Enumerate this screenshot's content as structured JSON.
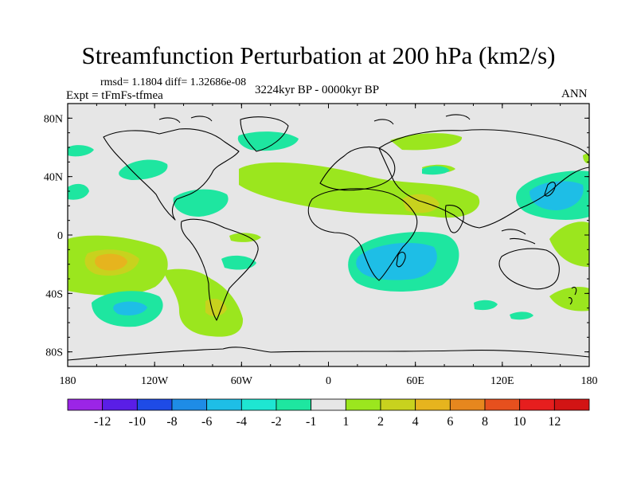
{
  "title": "Streamfunction Perturbation at 200 hPa (km2/s)",
  "stats": "rmsd= 1.1804 diff= 1.32686e-08",
  "experiment": "Expt = tFmFs-tfmea",
  "period": "3224kyr BP - 0000kyr BP",
  "season": "ANN",
  "map": {
    "lon_range": [
      -180,
      180
    ],
    "lat_range": [
      -90,
      90
    ],
    "background_color": "#e6e6e6",
    "y_axis_labels": [
      "80N",
      "40N",
      "0",
      "40S",
      "80S"
    ],
    "x_axis_labels": [
      "180",
      "120W",
      "60W",
      "0",
      "60E",
      "120E",
      "180"
    ]
  },
  "colorbar": {
    "levels": [
      "-12",
      "-10",
      "-8",
      "-6",
      "-4",
      "-2",
      "-1",
      "1",
      "2",
      "4",
      "6",
      "8",
      "10",
      "12"
    ],
    "colors": [
      "#9b25e6",
      "#5a1ee6",
      "#1e4be6",
      "#1e8ce6",
      "#1ebee6",
      "#1ee6d2",
      "#1ee6a0",
      "#e6e6e6",
      "#9be61e",
      "#c8d21e",
      "#e6b41e",
      "#e6871e",
      "#e6501e",
      "#e61e1e",
      "#d21414"
    ]
  }
}
